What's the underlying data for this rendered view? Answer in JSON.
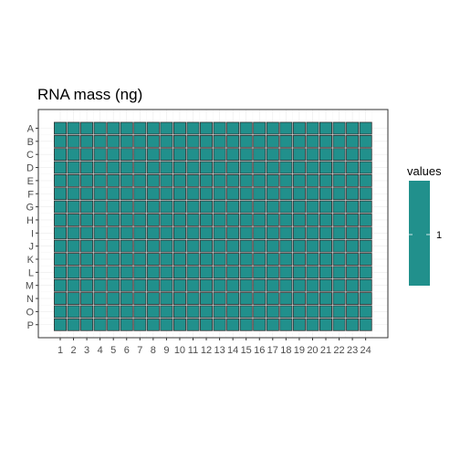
{
  "chart_data": {
    "type": "heatmap",
    "title": "RNA mass (ng)",
    "xlabel": "",
    "ylabel": "",
    "rows": [
      "A",
      "B",
      "C",
      "D",
      "E",
      "F",
      "G",
      "H",
      "I",
      "J",
      "K",
      "L",
      "M",
      "N",
      "O",
      "P"
    ],
    "columns": [
      "1",
      "2",
      "3",
      "4",
      "5",
      "6",
      "7",
      "8",
      "9",
      "10",
      "11",
      "12",
      "13",
      "14",
      "15",
      "16",
      "17",
      "18",
      "19",
      "20",
      "21",
      "22",
      "23",
      "24"
    ],
    "cell_value": 1,
    "fill_color": "#21908C",
    "legend": {
      "title": "values",
      "labels": [
        "1"
      ],
      "placement": "right"
    },
    "grid": true
  }
}
